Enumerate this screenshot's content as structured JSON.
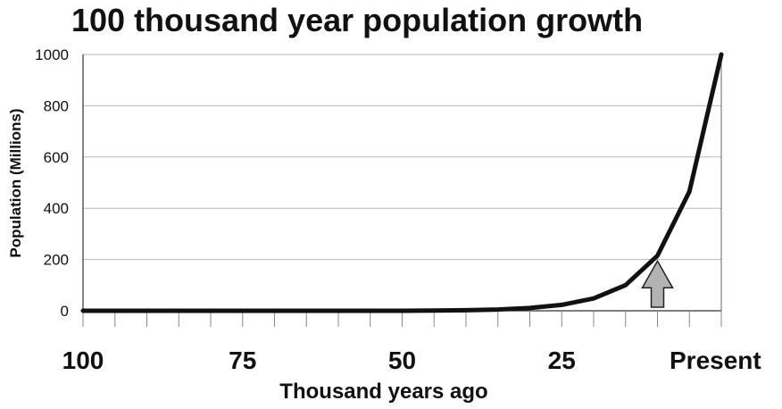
{
  "chart_data": {
    "type": "line",
    "title": "100 thousand year population growth",
    "xlabel": "Thousand years ago",
    "ylabel": "Population (Millions)",
    "xlim": [
      100,
      0
    ],
    "ylim": [
      0,
      1000
    ],
    "yticks": [
      0,
      200,
      400,
      600,
      800,
      1000
    ],
    "xticks": [
      {
        "value": 100,
        "label": "100"
      },
      {
        "value": 75,
        "label": "75"
      },
      {
        "value": 50,
        "label": "50"
      },
      {
        "value": 25,
        "label": "25"
      },
      {
        "value": 0,
        "label": "Present"
      }
    ],
    "grid": true,
    "series": [
      {
        "x": [
          100,
          95,
          90,
          85,
          80,
          75,
          70,
          65,
          60,
          55,
          50,
          45,
          40,
          35,
          30,
          25,
          20,
          15,
          10,
          5,
          0
        ],
        "values": [
          0,
          0,
          0,
          0,
          0,
          0,
          0,
          0,
          0,
          0,
          0,
          1,
          2,
          5,
          11,
          23,
          48,
          100,
          215,
          465,
          1000
        ]
      }
    ],
    "annotation": {
      "type": "arrow",
      "x": 10,
      "y": 215
    },
    "colors": {
      "line": "#111111",
      "grid": "#b8b8b8",
      "arrow_fill": "#b3b3b3",
      "arrow_stroke": "#222222"
    }
  }
}
